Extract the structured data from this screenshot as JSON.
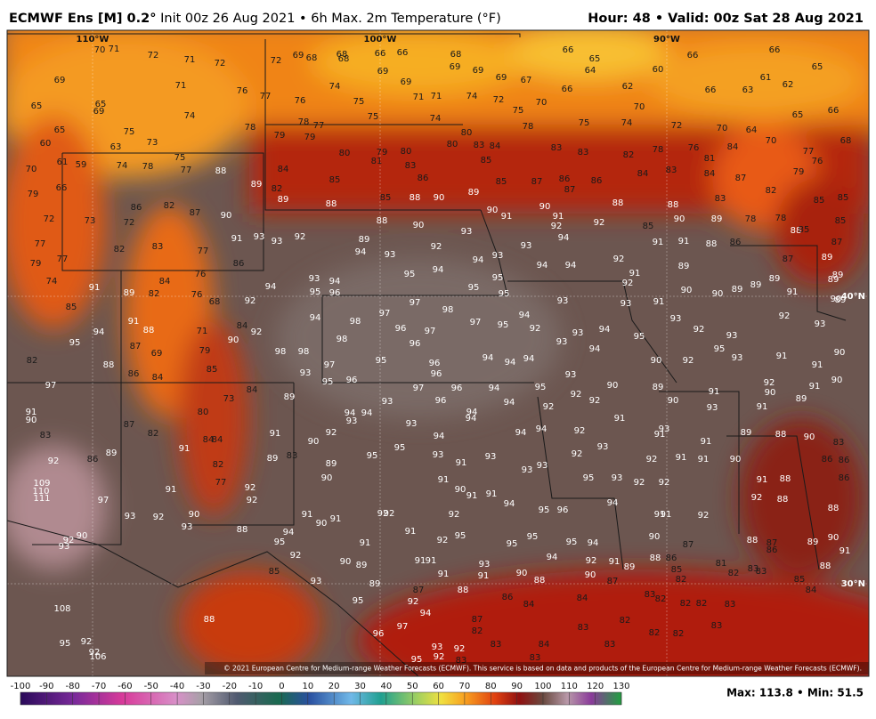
{
  "header": {
    "title_bold": "ECMWF Ens [M] 0.2°",
    "title_rest": "Init 00z 26 Aug 2021 • 6h Max. 2m Temperature (°F)",
    "valid": "Hour: 48 • Valid: 00z Sat 28 Aug 2021"
  },
  "map": {
    "lon_labels": [
      "110°W",
      "100°W",
      "90°W"
    ],
    "lat_labels": [
      "40°N",
      "30°N"
    ],
    "copyright": "© 2021 European Centre for Medium-range Weather Forecasts (ECMWF). This service is based on data and products of the European Centre for Medium-range Weather Forecasts (ECMWF).",
    "stations": [
      70,
      71,
      72,
      71,
      72,
      72,
      69,
      68,
      68,
      68,
      66,
      66,
      68,
      69,
      69,
      69,
      69,
      67,
      66,
      65,
      64,
      60,
      66,
      66,
      65,
      61,
      62,
      63,
      66,
      62,
      66,
      69,
      71,
      76,
      77,
      76,
      74,
      75,
      69,
      71,
      71,
      74,
      72,
      75,
      70,
      65,
      65,
      69,
      74,
      75,
      74,
      65,
      75,
      73,
      63,
      60,
      78,
      78,
      77,
      79,
      79,
      80,
      78,
      75,
      74,
      70,
      72,
      70,
      64,
      70,
      65,
      66,
      68,
      77,
      76,
      79,
      84,
      81,
      76,
      78,
      82,
      83,
      83,
      84,
      83,
      80,
      80,
      79,
      81,
      80,
      83,
      85,
      61,
      59,
      74,
      78,
      75,
      77,
      88,
      84,
      89,
      82,
      85,
      86,
      70,
      79,
      66,
      72,
      73,
      72,
      86,
      82,
      87,
      90,
      89,
      88,
      85,
      88,
      90,
      89,
      85,
      87,
      86,
      87,
      86,
      88,
      84,
      83,
      88,
      84,
      83,
      87,
      82,
      85,
      85,
      85,
      78,
      78,
      89,
      90,
      85,
      92,
      91,
      92,
      90,
      91,
      90,
      90,
      88,
      77,
      79,
      77,
      82,
      83,
      77,
      86,
      91,
      93,
      93,
      92,
      89,
      93,
      92,
      93,
      94,
      93,
      93,
      94,
      94,
      94,
      92,
      91,
      91,
      91,
      88,
      86,
      88,
      85,
      87,
      87,
      89,
      89,
      89,
      74,
      91,
      84,
      76,
      85,
      89,
      82,
      76,
      68,
      94,
      93,
      94,
      95,
      96,
      94,
      95,
      94,
      95,
      95,
      95,
      94,
      93,
      93,
      92,
      91,
      89,
      90,
      90,
      89,
      89,
      89,
      91,
      90,
      89,
      95,
      94,
      91,
      88,
      87,
      69,
      71,
      84,
      92,
      90,
      92,
      94,
      98,
      97,
      97,
      98,
      97,
      97,
      96,
      96,
      95,
      92,
      93,
      93,
      94,
      94,
      95,
      93,
      92,
      93,
      93,
      95,
      93,
      92,
      98,
      79,
      85,
      88,
      86,
      84,
      82,
      98,
      98,
      93,
      97,
      95,
      96,
      96,
      94,
      94,
      94,
      93,
      90,
      92,
      91,
      91,
      90,
      97,
      84,
      73,
      89,
      95,
      96,
      97,
      96,
      96,
      94,
      94,
      95,
      92,
      92,
      90,
      89,
      90,
      91,
      92,
      90,
      90,
      91,
      89,
      91,
      90,
      80,
      87,
      94,
      93,
      94,
      93,
      93,
      94,
      94,
      94,
      94,
      92,
      92,
      91,
      91,
      93,
      93,
      91,
      83,
      82,
      84,
      84,
      91,
      90,
      92,
      95,
      94,
      93,
      93,
      93,
      93,
      92,
      93,
      92,
      91,
      91,
      91,
      90,
      89,
      88,
      90,
      83,
      86,
      86,
      92,
      86,
      89,
      91,
      82,
      89,
      83,
      89,
      95,
      91,
      90,
      91,
      90,
      91,
      91,
      94,
      95,
      93,
      92,
      92,
      91,
      88,
      86,
      109,
      110,
      111,
      91,
      77,
      92,
      92,
      97,
      94,
      96,
      95,
      88,
      92,
      88,
      93,
      92,
      90,
      91,
      90,
      91,
      92,
      92,
      92,
      91,
      91,
      91,
      92,
      90,
      92,
      93,
      93,
      88,
      94,
      95,
      91,
      92,
      95,
      95,
      95,
      95,
      94,
      90,
      87,
      88,
      87,
      86,
      89,
      90,
      91,
      92,
      90,
      89,
      91,
      91,
      93,
      91,
      91,
      90,
      94,
      92,
      90,
      91,
      89,
      88,
      86,
      82,
      85,
      81,
      82,
      83,
      83,
      85,
      88,
      85,
      93,
      89,
      87,
      92,
      94,
      88,
      88,
      87,
      83,
      82,
      82,
      82,
      83,
      84,
      86,
      84,
      84,
      95,
      108,
      87,
      82,
      97,
      96,
      88,
      83,
      84,
      83,
      83,
      82,
      82,
      82,
      83,
      93,
      92,
      92,
      95,
      83,
      106,
      95,
      92,
      92,
      83
    ]
  },
  "colorbar": {
    "ticks": [
      -100,
      -90,
      -80,
      -70,
      -60,
      -50,
      -40,
      -30,
      -20,
      -10,
      0,
      10,
      20,
      30,
      40,
      50,
      60,
      70,
      80,
      90,
      100,
      110,
      120,
      130
    ]
  },
  "footer": {
    "stats": "Max: 113.8 • Min: 51.5"
  }
}
